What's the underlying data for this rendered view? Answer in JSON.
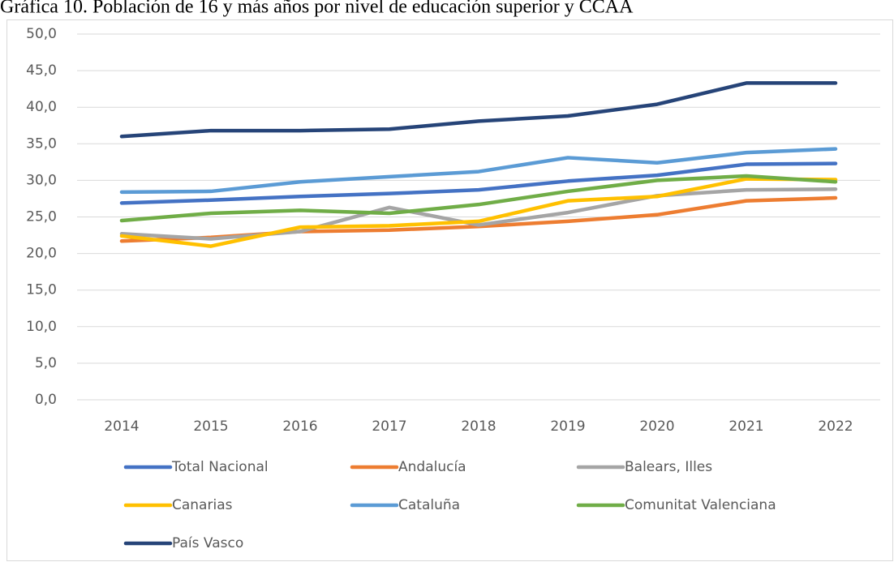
{
  "chart_data": {
    "type": "line",
    "title": "Gráfica 10. Población de 16 y más años por nivel de educación superior y CCAA",
    "categories": [
      "2014",
      "2015",
      "2016",
      "2017",
      "2018",
      "2019",
      "2020",
      "2021",
      "2022"
    ],
    "series": [
      {
        "name": "Total Nacional",
        "color": "#4472c4",
        "values": [
          26.9,
          27.3,
          27.8,
          28.2,
          28.7,
          29.9,
          30.7,
          32.2,
          32.3
        ]
      },
      {
        "name": "Andalucía",
        "color": "#ed7d31",
        "values": [
          21.7,
          22.2,
          23.0,
          23.2,
          23.7,
          24.4,
          25.3,
          27.2,
          27.6
        ]
      },
      {
        "name": "Balears, Illes",
        "color": "#a5a5a5",
        "values": [
          22.7,
          22.0,
          23.0,
          26.3,
          23.9,
          25.6,
          27.9,
          28.7,
          28.8
        ]
      },
      {
        "name": "Canarias",
        "color": "#ffc000",
        "values": [
          22.4,
          21.0,
          23.6,
          23.8,
          24.4,
          27.2,
          27.8,
          30.2,
          30.1
        ]
      },
      {
        "name": "Cataluña",
        "color": "#5b9bd5",
        "values": [
          28.4,
          28.5,
          29.8,
          30.5,
          31.2,
          33.1,
          32.4,
          33.8,
          34.3
        ]
      },
      {
        "name": "Comunitat Valenciana",
        "color": "#70ad47",
        "values": [
          24.5,
          25.5,
          25.9,
          25.5,
          26.7,
          28.5,
          30.0,
          30.6,
          29.8
        ]
      },
      {
        "name": "País Vasco",
        "color": "#264478",
        "values": [
          36.0,
          36.8,
          36.8,
          37.0,
          38.1,
          38.8,
          40.4,
          43.3,
          43.3
        ]
      }
    ],
    "ylim": [
      0,
      50
    ],
    "yticks": [
      {
        "value": 0,
        "label": "0,0"
      },
      {
        "value": 5,
        "label": "5,0"
      },
      {
        "value": 10,
        "label": "10,0"
      },
      {
        "value": 15,
        "label": "15,0"
      },
      {
        "value": 20,
        "label": "20,0"
      },
      {
        "value": 25,
        "label": "25,0"
      },
      {
        "value": 30,
        "label": "30,0"
      },
      {
        "value": 35,
        "label": "35,0"
      },
      {
        "value": 40,
        "label": "40,0"
      },
      {
        "value": 45,
        "label": "45,0"
      },
      {
        "value": 50,
        "label": "50,0"
      }
    ],
    "grid": true,
    "legend": "bottom"
  }
}
